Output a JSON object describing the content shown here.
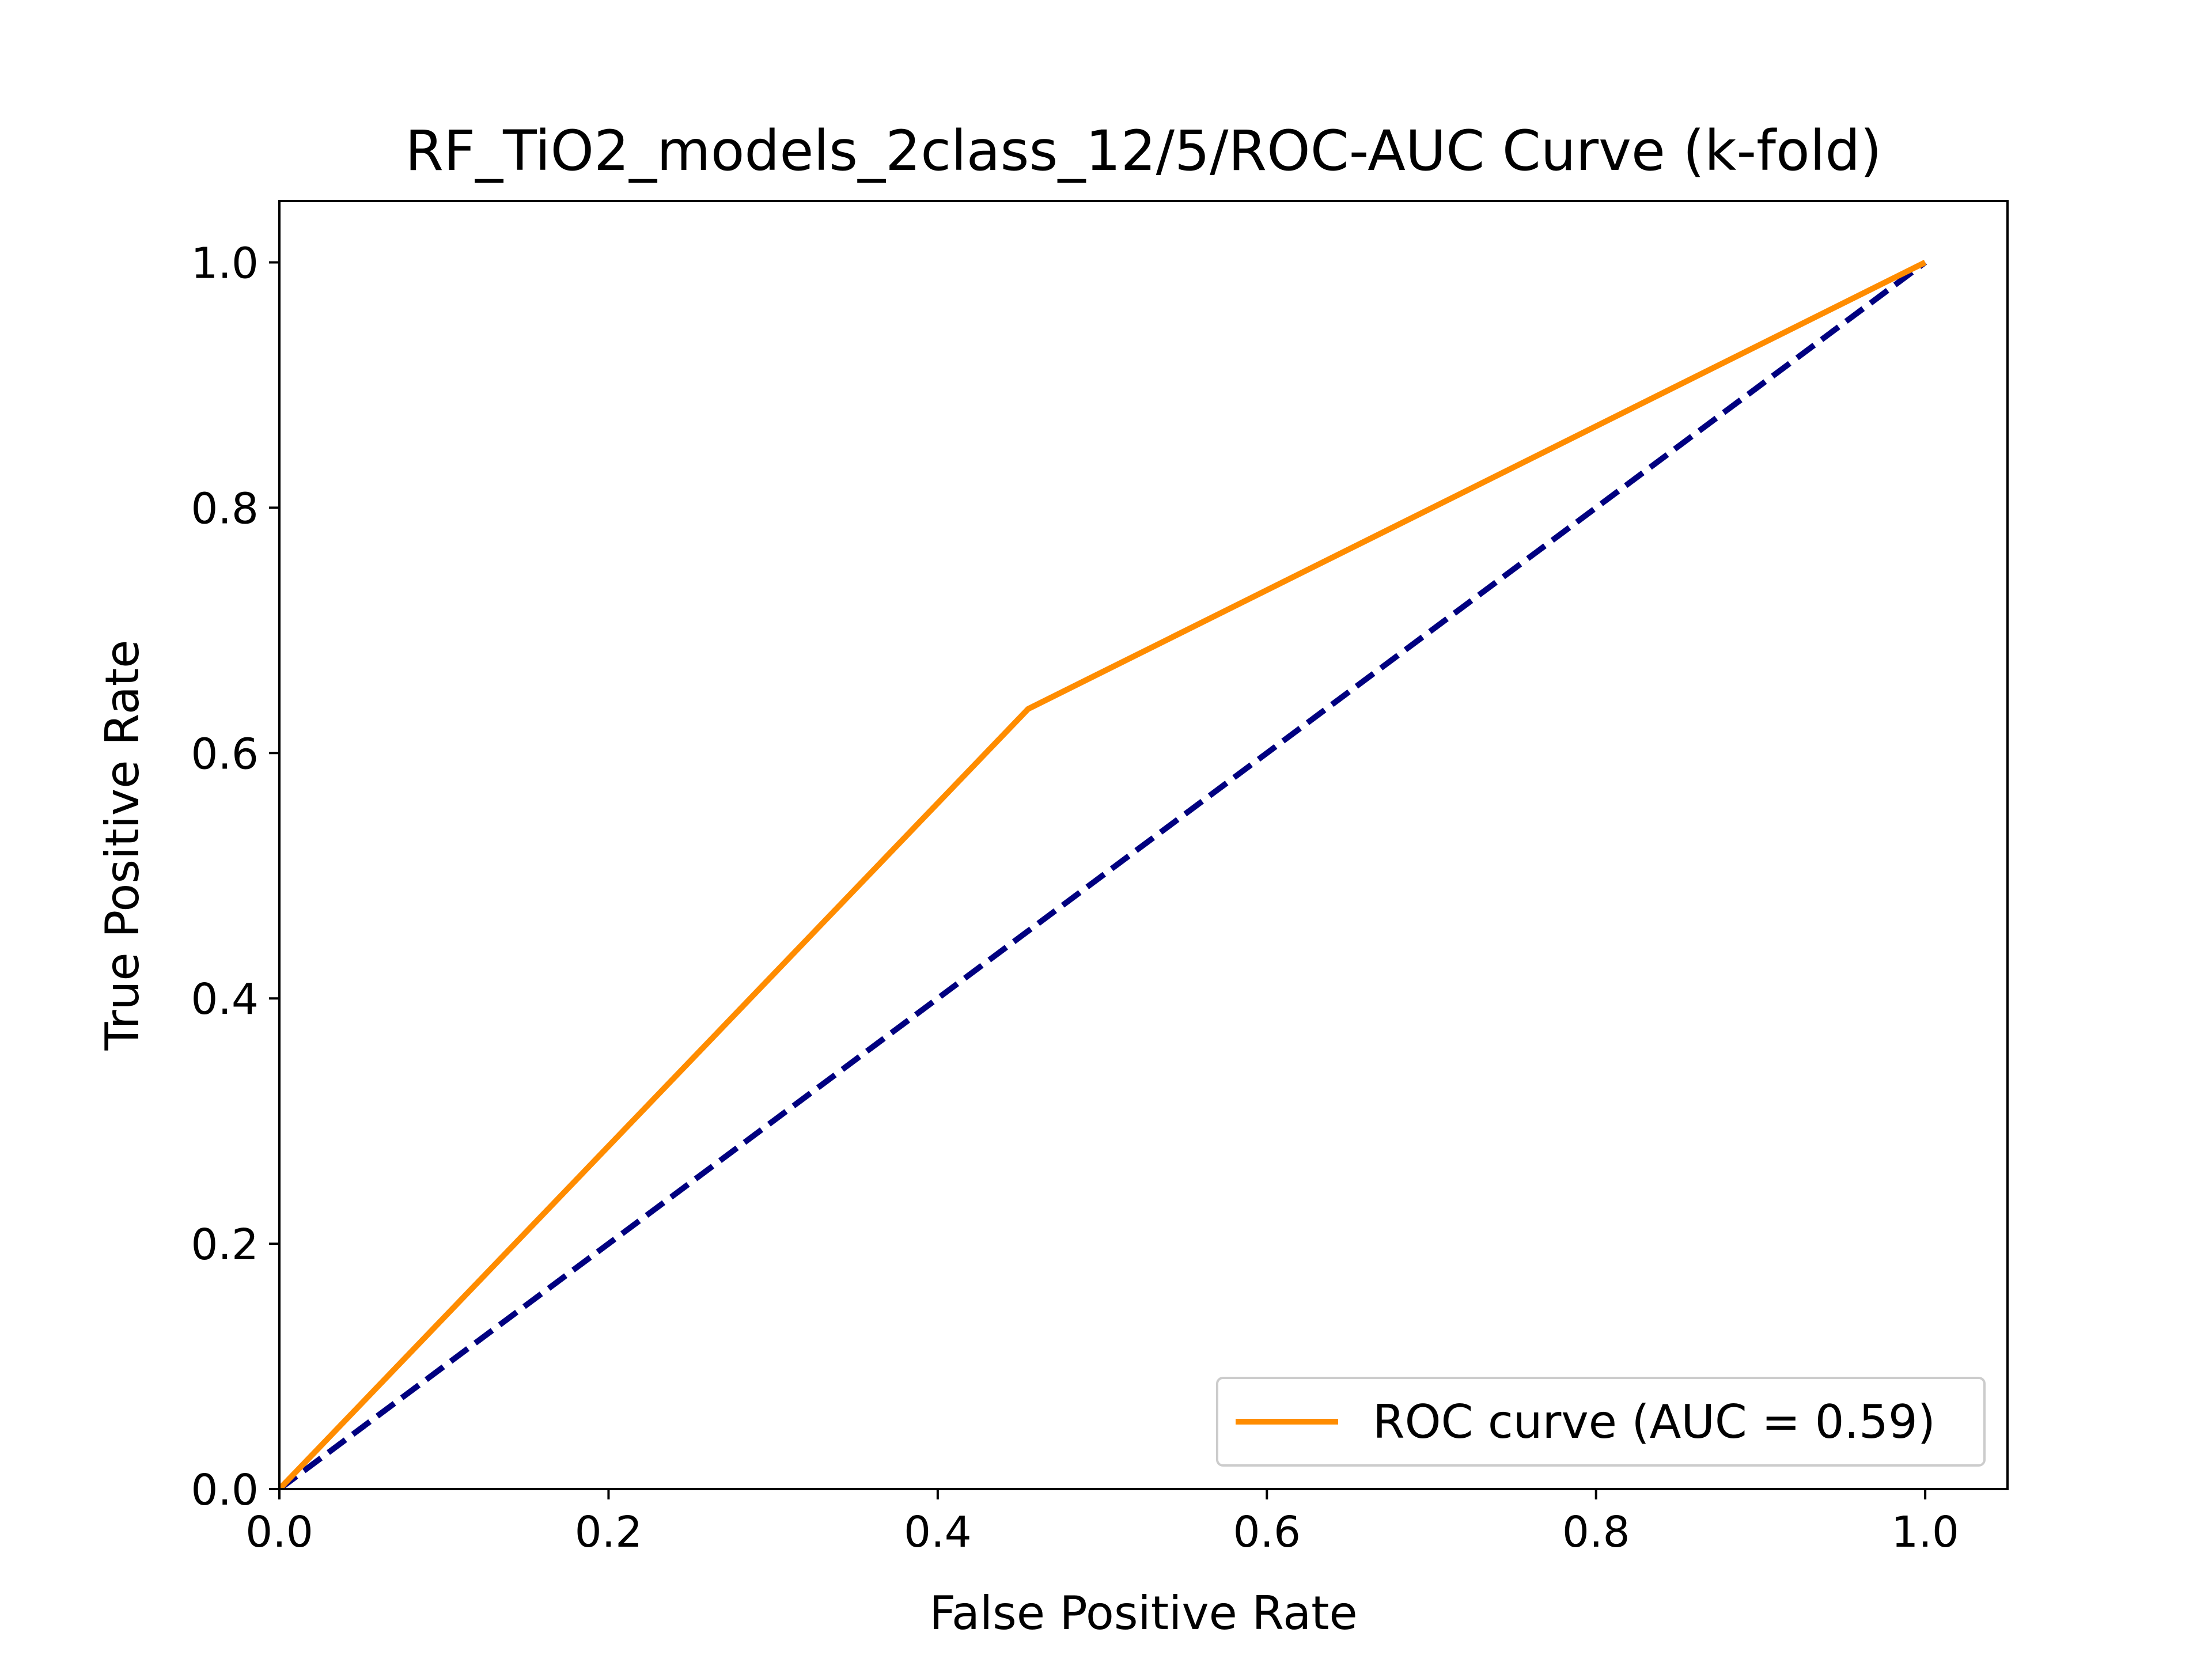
{
  "chart_data": {
    "type": "line",
    "title": "RF_TiO2_models_2class_12/5/ROC-AUC Curve (k-fold)",
    "xlabel": "False Positive Rate",
    "ylabel": "True Positive Rate",
    "xlim": [
      0.0,
      1.05
    ],
    "ylim": [
      0.0,
      1.05
    ],
    "x_ticks": [
      "0.0",
      "0.2",
      "0.4",
      "0.6",
      "0.8",
      "1.0"
    ],
    "y_ticks": [
      "0.0",
      "0.2",
      "0.4",
      "0.6",
      "0.8",
      "1.0"
    ],
    "grid": false,
    "legend_position": "lower-right",
    "series": [
      {
        "name": "ROC curve (AUC = 0.59)",
        "color": "#ff8c00",
        "style": "solid",
        "x": [
          0.0,
          0.455,
          1.0
        ],
        "y": [
          0.0,
          0.636,
          1.0
        ]
      },
      {
        "color": "#000080",
        "style": "dashed",
        "x": [
          0.0,
          1.0
        ],
        "y": [
          0.0,
          1.0
        ]
      }
    ]
  }
}
